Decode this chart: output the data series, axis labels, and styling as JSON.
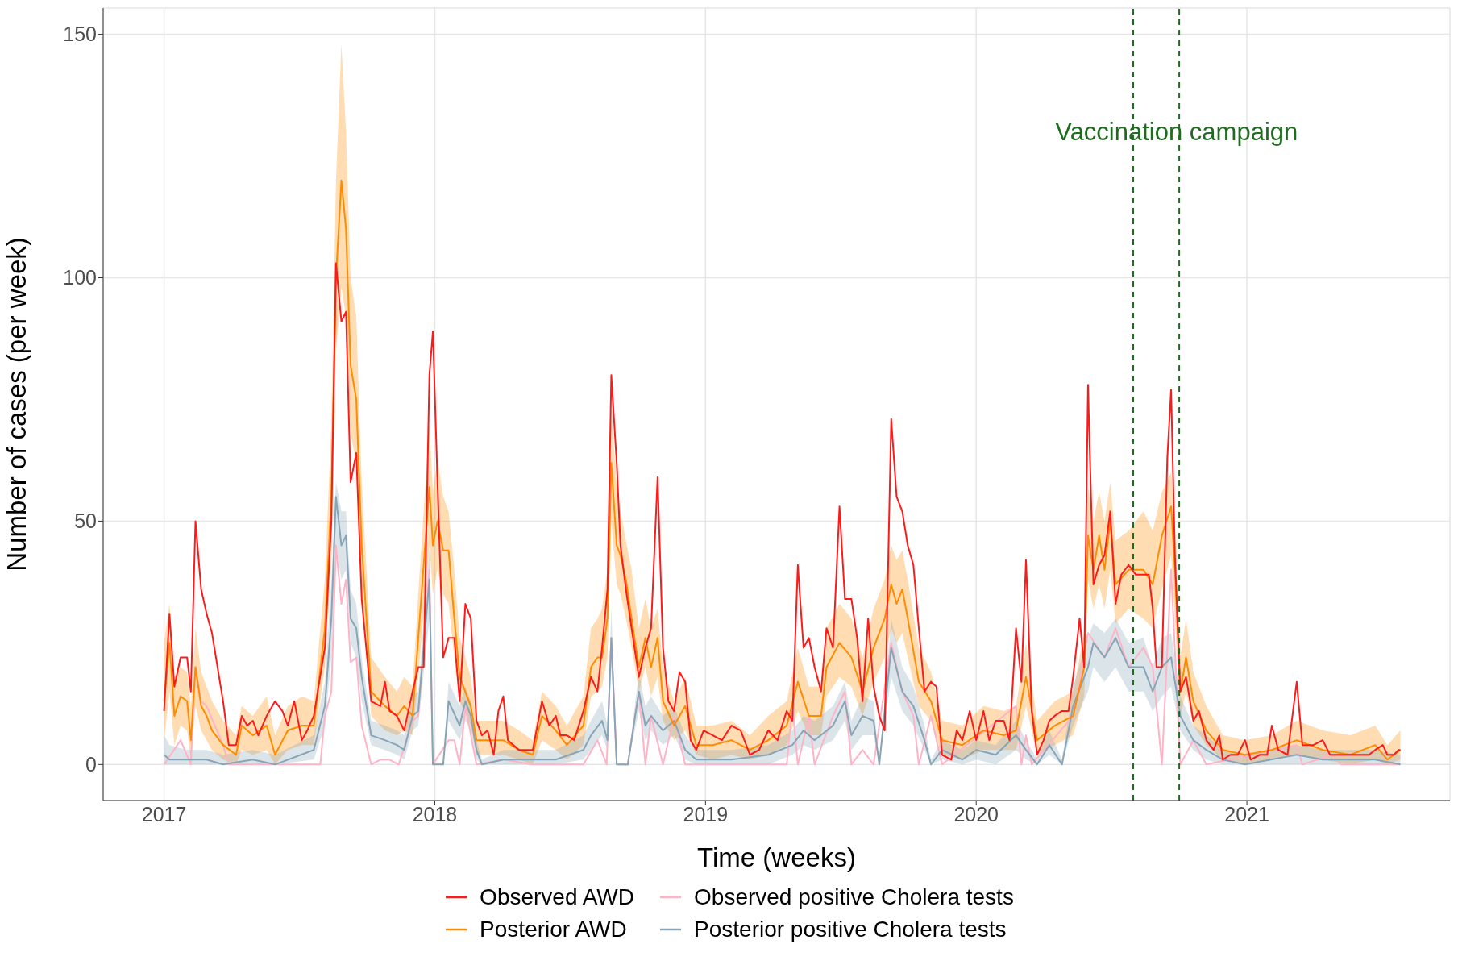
{
  "chart_data": {
    "type": "line",
    "xlabel": "Time (weeks)",
    "ylabel": "Number of cases (per week)",
    "xlim": [
      2016.775,
      2021.75
    ],
    "xticks": [
      2017,
      2018,
      2019,
      2020,
      2021
    ],
    "ylim": [
      -7.4,
      155.4
    ],
    "yticks": [
      0,
      50,
      100,
      150
    ],
    "grid": true,
    "legend": "bottom",
    "ref_lines": [
      {
        "axis": "x",
        "value": 2020.58,
        "color": "#1f6b1f",
        "line_style": "dashed"
      },
      {
        "axis": "x",
        "value": 2020.75,
        "color": "#1f6b1f",
        "line_style": "dashed"
      }
    ],
    "annotations": [
      {
        "text": "Vaccination campaign",
        "x": 2020.74,
        "y": 130
      }
    ],
    "series": [
      {
        "name": "Observed AWD",
        "color": "#ff1a1a",
        "x": [
          2017.0,
          2017.02,
          2017.038,
          2017.061,
          2017.085,
          2017.099,
          2017.116,
          2017.137,
          2017.157,
          2017.177,
          2017.218,
          2017.239,
          2017.266,
          2017.287,
          2017.307,
          2017.328,
          2017.348,
          2017.379,
          2017.41,
          2017.437,
          2017.457,
          2017.481,
          2017.509,
          2017.529,
          2017.553,
          2017.594,
          2017.618,
          2017.635,
          2017.655,
          2017.672,
          2017.689,
          2017.71,
          2017.73,
          2017.765,
          2017.799,
          2017.816,
          2017.833,
          2017.86,
          2017.887,
          2017.918,
          2017.939,
          2017.959,
          2017.98,
          2017.993,
          2018.01,
          2018.031,
          2018.051,
          2018.072,
          2018.092,
          2018.113,
          2018.133,
          2018.154,
          2018.174,
          2018.195,
          2018.218,
          2018.235,
          2018.253,
          2018.27,
          2018.311,
          2018.362,
          2018.396,
          2018.423,
          2018.447,
          2018.464,
          2018.488,
          2018.515,
          2018.549,
          2018.577,
          2018.601,
          2018.618,
          2018.638,
          2018.652,
          2018.672,
          2018.686,
          2018.706,
          2018.727,
          2018.754,
          2018.778,
          2018.799,
          2018.823,
          2018.843,
          2018.863,
          2018.884,
          2018.904,
          2018.925,
          2018.945,
          2018.966,
          2018.993,
          2019.027,
          2019.061,
          2019.096,
          2019.13,
          2019.164,
          2019.198,
          2019.232,
          2019.266,
          2019.3,
          2019.321,
          2019.341,
          2019.362,
          2019.382,
          2019.403,
          2019.427,
          2019.447,
          2019.471,
          2019.495,
          2019.515,
          2019.539,
          2019.56,
          2019.58,
          2019.601,
          2019.621,
          2019.642,
          2019.662,
          2019.686,
          2019.706,
          2019.727,
          2019.747,
          2019.768,
          2019.788,
          2019.809,
          2019.833,
          2019.853,
          2019.874,
          2019.908,
          2019.928,
          2019.949,
          2019.976,
          2020.0,
          2020.027,
          2020.048,
          2020.072,
          2020.102,
          2020.123,
          2020.147,
          2020.167,
          2020.184,
          2020.205,
          2020.225,
          2020.249,
          2020.27,
          2020.29,
          2020.317,
          2020.341,
          2020.358,
          2020.382,
          2020.399,
          2020.413,
          2020.433,
          2020.454,
          2020.474,
          2020.495,
          2020.515,
          2020.536,
          2020.563,
          2020.59,
          2020.618,
          2020.638,
          2020.652,
          2020.666,
          2020.686,
          2020.706,
          2020.72,
          2020.734,
          2020.754,
          2020.775,
          2020.802,
          2020.823,
          2020.85,
          2020.877,
          2020.898,
          2020.911,
          2020.939,
          2020.966,
          2020.993,
          2021.014,
          2021.048,
          2021.075,
          2021.092,
          2021.116,
          2021.15,
          2021.184,
          2021.205,
          2021.246,
          2021.28,
          2021.307,
          2021.348,
          2021.382,
          2021.416,
          2021.451,
          2021.474,
          2021.502,
          2021.519,
          2021.543,
          2021.56,
          2021.567
        ],
        "values": [
          11,
          31,
          16,
          22,
          22,
          15,
          50,
          36,
          31,
          27,
          13,
          4,
          4,
          10,
          8,
          9,
          6,
          10,
          13,
          11,
          8,
          13,
          5,
          7,
          10,
          24,
          50,
          103,
          91,
          93,
          58,
          64,
          34,
          13,
          12,
          17,
          11,
          10,
          7,
          15,
          20,
          20,
          80,
          89,
          58,
          22,
          26,
          26,
          13,
          33,
          30,
          9,
          6,
          7,
          2,
          11,
          14,
          5,
          3,
          3,
          13,
          8,
          10,
          6,
          6,
          5,
          11,
          18,
          15,
          24,
          36,
          80,
          62,
          45,
          36,
          28,
          18,
          24,
          28,
          59,
          24,
          13,
          11,
          19,
          17,
          5,
          3,
          7,
          6,
          5,
          8,
          7,
          2,
          3,
          7,
          5,
          11,
          9,
          41,
          24,
          26,
          20,
          15,
          28,
          24,
          53,
          34,
          34,
          26,
          13,
          30,
          16,
          10,
          7,
          71,
          55,
          52,
          45,
          41,
          28,
          15,
          17,
          16,
          2,
          1,
          7,
          5,
          11,
          5,
          11,
          5,
          9,
          9,
          5,
          28,
          17,
          42,
          11,
          2,
          5,
          9,
          10,
          11,
          11,
          18,
          30,
          20,
          78,
          37,
          41,
          43,
          52,
          33,
          39,
          41,
          39,
          39,
          39,
          32,
          20,
          20,
          63,
          77,
          43,
          15,
          18,
          9,
          11,
          5,
          3,
          6,
          1,
          2,
          2,
          5,
          1,
          2,
          2,
          8,
          3,
          2,
          17,
          4,
          4,
          5,
          2,
          2,
          2,
          2,
          2,
          3,
          4,
          2,
          2,
          3,
          3
        ]
      },
      {
        "name": "Posterior AWD",
        "color": "#ff8c00",
        "x": [
          2017.0,
          2017.02,
          2017.038,
          2017.061,
          2017.085,
          2017.099,
          2017.116,
          2017.137,
          2017.157,
          2017.177,
          2017.218,
          2017.266,
          2017.287,
          2017.328,
          2017.379,
          2017.41,
          2017.457,
          2017.509,
          2017.553,
          2017.594,
          2017.618,
          2017.635,
          2017.655,
          2017.672,
          2017.689,
          2017.71,
          2017.73,
          2017.765,
          2017.816,
          2017.86,
          2017.887,
          2017.918,
          2017.939,
          2017.98,
          2017.993,
          2018.01,
          2018.031,
          2018.051,
          2018.072,
          2018.092,
          2018.133,
          2018.154,
          2018.195,
          2018.253,
          2018.311,
          2018.362,
          2018.396,
          2018.447,
          2018.488,
          2018.549,
          2018.577,
          2018.601,
          2018.618,
          2018.638,
          2018.652,
          2018.672,
          2018.686,
          2018.706,
          2018.727,
          2018.754,
          2018.778,
          2018.799,
          2018.823,
          2018.843,
          2018.884,
          2018.925,
          2018.966,
          2019.027,
          2019.096,
          2019.164,
          2019.232,
          2019.3,
          2019.341,
          2019.382,
          2019.427,
          2019.447,
          2019.495,
          2019.539,
          2019.58,
          2019.621,
          2019.662,
          2019.686,
          2019.706,
          2019.727,
          2019.747,
          2019.788,
          2019.833,
          2019.874,
          2019.949,
          2020.027,
          2020.102,
          2020.147,
          2020.184,
          2020.225,
          2020.29,
          2020.358,
          2020.399,
          2020.413,
          2020.433,
          2020.454,
          2020.474,
          2020.495,
          2020.515,
          2020.563,
          2020.618,
          2020.652,
          2020.686,
          2020.72,
          2020.734,
          2020.754,
          2020.775,
          2020.802,
          2020.85,
          2020.911,
          2020.993,
          2021.092,
          2021.184,
          2021.28,
          2021.382,
          2021.474,
          2021.519,
          2021.567
        ],
        "values": [
          13,
          25,
          10,
          14,
          13,
          5,
          20,
          12,
          10,
          7,
          4,
          2,
          8,
          6,
          8,
          2,
          7,
          8,
          8,
          28,
          55,
          100,
          120,
          110,
          82,
          75,
          45,
          15,
          12,
          10,
          12,
          10,
          26,
          57,
          45,
          50,
          44,
          44,
          30,
          18,
          12,
          5,
          5,
          5,
          3,
          2,
          10,
          7,
          4,
          8,
          20,
          22,
          22,
          30,
          62,
          45,
          43,
          38,
          30,
          20,
          26,
          20,
          26,
          13,
          8,
          12,
          4,
          4,
          5,
          3,
          5,
          8,
          17,
          10,
          10,
          20,
          25,
          22,
          15,
          24,
          30,
          37,
          33,
          36,
          30,
          17,
          13,
          5,
          4,
          7,
          6,
          7,
          18,
          5,
          8,
          10,
          20,
          47,
          40,
          47,
          40,
          50,
          37,
          40,
          40,
          37,
          47,
          53,
          40,
          15,
          22,
          13,
          7,
          3,
          2,
          3,
          5,
          3,
          2,
          4,
          1,
          3
        ],
        "lower": [
          5,
          15,
          4,
          8,
          7,
          1,
          12,
          7,
          5,
          3,
          1,
          0,
          3,
          2,
          3,
          0,
          3,
          4,
          4,
          20,
          42,
          85,
          98,
          92,
          68,
          62,
          35,
          10,
          7,
          6,
          7,
          6,
          18,
          45,
          35,
          40,
          35,
          33,
          22,
          13,
          8,
          2,
          2,
          2,
          1,
          0,
          5,
          3,
          1,
          4,
          14,
          15,
          16,
          22,
          50,
          37,
          35,
          30,
          24,
          15,
          20,
          14,
          18,
          9,
          5,
          7,
          2,
          1,
          2,
          1,
          2,
          4,
          11,
          6,
          6,
          14,
          18,
          16,
          10,
          17,
          22,
          28,
          25,
          27,
          22,
          12,
          9,
          2,
          1,
          3,
          3,
          3,
          12,
          2,
          4,
          6,
          14,
          38,
          32,
          37,
          32,
          40,
          29,
          32,
          30,
          28,
          36,
          43,
          30,
          10,
          15,
          8,
          4,
          1,
          0,
          1,
          2,
          1,
          0,
          1,
          0,
          1
        ],
        "upper": [
          25,
          33,
          18,
          20,
          19,
          12,
          28,
          19,
          16,
          13,
          9,
          6,
          12,
          10,
          14,
          6,
          12,
          14,
          13,
          38,
          70,
          120,
          148,
          130,
          100,
          92,
          58,
          22,
          18,
          15,
          18,
          16,
          35,
          70,
          56,
          63,
          55,
          52,
          40,
          26,
          18,
          9,
          9,
          9,
          7,
          5,
          15,
          12,
          8,
          14,
          28,
          30,
          32,
          40,
          73,
          57,
          52,
          46,
          40,
          28,
          34,
          28,
          32,
          20,
          13,
          18,
          8,
          8,
          9,
          6,
          10,
          13,
          24,
          16,
          16,
          28,
          33,
          30,
          22,
          32,
          38,
          45,
          42,
          44,
          38,
          24,
          19,
          9,
          8,
          12,
          11,
          12,
          25,
          9,
          13,
          15,
          27,
          57,
          50,
          56,
          50,
          58,
          46,
          48,
          52,
          48,
          56,
          60,
          50,
          22,
          30,
          19,
          12,
          6,
          5,
          6,
          9,
          7,
          6,
          8,
          4,
          7
        ]
      },
      {
        "name": "Observed positive Cholera tests",
        "color": "#ffb3c6",
        "x": [
          2017.0,
          2017.061,
          2017.099,
          2017.116,
          2017.137,
          2017.157,
          2017.218,
          2017.239,
          2017.41,
          2017.529,
          2017.577,
          2017.594,
          2017.618,
          2017.635,
          2017.655,
          2017.672,
          2017.689,
          2017.71,
          2017.73,
          2017.765,
          2017.799,
          2017.833,
          2017.867,
          2017.918,
          2017.939,
          2017.98,
          2017.993,
          2018.051,
          2018.072,
          2018.092,
          2018.113,
          2018.154,
          2018.253,
          2018.362,
          2018.549,
          2018.601,
          2018.635,
          2018.652,
          2018.672,
          2018.713,
          2018.754,
          2018.778,
          2018.799,
          2018.843,
          2018.884,
          2018.925,
          2019.3,
          2019.321,
          2019.341,
          2019.382,
          2019.403,
          2019.471,
          2019.515,
          2019.539,
          2019.58,
          2019.621,
          2019.686,
          2019.727,
          2019.768,
          2019.788,
          2019.833,
          2019.874,
          2020.147,
          2020.167,
          2020.184,
          2020.205,
          2020.358,
          2020.413,
          2020.474,
          2020.515,
          2020.563,
          2020.618,
          2020.652,
          2020.686,
          2020.72,
          2020.754,
          2020.802,
          2020.85,
          2021.184,
          2021.205,
          2021.314,
          2021.348,
          2021.567
        ],
        "values": [
          0,
          5,
          0,
          20,
          13,
          12,
          4,
          0,
          0,
          0,
          0,
          10,
          15,
          45,
          33,
          38,
          21,
          22,
          8,
          0,
          1,
          1,
          0,
          9,
          10,
          40,
          0,
          5,
          5,
          0,
          12,
          0,
          1,
          0,
          0,
          5,
          0,
          26,
          0,
          0,
          15,
          0,
          10,
          0,
          10,
          0,
          0,
          12,
          0,
          10,
          0,
          10,
          15,
          0,
          3,
          0,
          25,
          15,
          10,
          0,
          10,
          0,
          12,
          0,
          6,
          0,
          10,
          27,
          22,
          28,
          20,
          24,
          20,
          0,
          40,
          0,
          5,
          0,
          4,
          0,
          2,
          0,
          0
        ]
      },
      {
        "name": "Posterior positive Cholera tests",
        "color": "#87a5b7",
        "x": [
          2017.0,
          2017.02,
          2017.085,
          2017.157,
          2017.218,
          2017.328,
          2017.41,
          2017.553,
          2017.594,
          2017.618,
          2017.635,
          2017.655,
          2017.672,
          2017.689,
          2017.71,
          2017.73,
          2017.765,
          2017.816,
          2017.86,
          2017.887,
          2017.918,
          2017.939,
          2017.98,
          2017.993,
          2018.031,
          2018.051,
          2018.092,
          2018.113,
          2018.133,
          2018.154,
          2018.174,
          2018.253,
          2018.362,
          2018.447,
          2018.549,
          2018.577,
          2018.618,
          2018.638,
          2018.652,
          2018.672,
          2018.713,
          2018.754,
          2018.778,
          2018.799,
          2018.843,
          2018.884,
          2018.925,
          2018.966,
          2019.096,
          2019.232,
          2019.321,
          2019.362,
          2019.403,
          2019.471,
          2019.515,
          2019.539,
          2019.58,
          2019.621,
          2019.642,
          2019.686,
          2019.727,
          2019.768,
          2019.809,
          2019.833,
          2019.874,
          2019.949,
          2020.0,
          2020.072,
          2020.147,
          2020.184,
          2020.225,
          2020.27,
          2020.317,
          2020.358,
          2020.413,
          2020.433,
          2020.474,
          2020.515,
          2020.563,
          2020.618,
          2020.652,
          2020.686,
          2020.72,
          2020.754,
          2020.802,
          2020.85,
          2020.911,
          2020.993,
          2021.184,
          2021.28,
          2021.474,
          2021.567
        ],
        "values": [
          2,
          1,
          1,
          1,
          0,
          1,
          0,
          3,
          12,
          30,
          55,
          45,
          47,
          30,
          28,
          18,
          6,
          5,
          4,
          3,
          10,
          11,
          38,
          0,
          0,
          13,
          8,
          13,
          10,
          3,
          0,
          1,
          1,
          1,
          3,
          6,
          9,
          5,
          26,
          0,
          0,
          15,
          8,
          10,
          7,
          9,
          3,
          1,
          1,
          2,
          4,
          7,
          5,
          8,
          13,
          6,
          10,
          9,
          0,
          24,
          15,
          12,
          5,
          0,
          3,
          1,
          3,
          2,
          6,
          3,
          0,
          4,
          0,
          12,
          20,
          25,
          22,
          26,
          20,
          20,
          15,
          20,
          22,
          10,
          5,
          3,
          1,
          0,
          2,
          1,
          1,
          0
        ],
        "lower": [
          0,
          0,
          0,
          0,
          0,
          0,
          0,
          1,
          8,
          22,
          45,
          38,
          40,
          25,
          22,
          13,
          4,
          3,
          2,
          1,
          7,
          8,
          30,
          0,
          0,
          9,
          5,
          9,
          7,
          1,
          0,
          0,
          0,
          0,
          1,
          3,
          6,
          3,
          20,
          0,
          0,
          11,
          5,
          7,
          4,
          6,
          1,
          0,
          0,
          0,
          2,
          4,
          3,
          5,
          9,
          3,
          6,
          6,
          0,
          18,
          11,
          8,
          3,
          0,
          1,
          0,
          1,
          0,
          3,
          1,
          0,
          2,
          0,
          8,
          15,
          20,
          17,
          20,
          15,
          15,
          11,
          14,
          16,
          7,
          3,
          1,
          0,
          0,
          0,
          0,
          0,
          0
        ],
        "upper": [
          6,
          4,
          3,
          3,
          2,
          3,
          2,
          6,
          17,
          38,
          58,
          52,
          52,
          36,
          33,
          22,
          9,
          8,
          7,
          6,
          14,
          15,
          45,
          0,
          0,
          17,
          12,
          16,
          13,
          5,
          1,
          3,
          3,
          3,
          6,
          9,
          13,
          8,
          32,
          0,
          0,
          19,
          12,
          14,
          10,
          12,
          6,
          3,
          3,
          4,
          7,
          10,
          9,
          12,
          17,
          9,
          14,
          13,
          0,
          30,
          20,
          16,
          8,
          1,
          5,
          3,
          5,
          4,
          9,
          5,
          1,
          7,
          1,
          16,
          26,
          29,
          27,
          30,
          25,
          26,
          20,
          26,
          27,
          14,
          8,
          6,
          3,
          2,
          4,
          3,
          3,
          2
        ]
      }
    ]
  }
}
